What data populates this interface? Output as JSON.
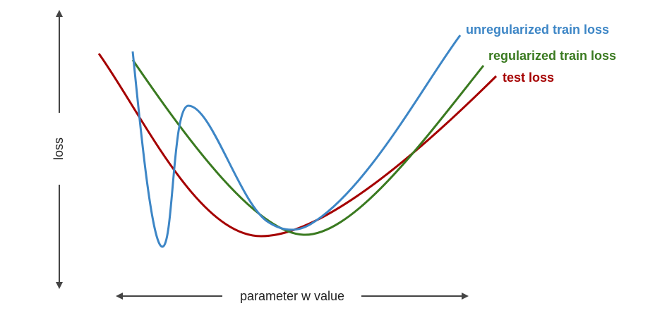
{
  "axes": {
    "y_label": "loss",
    "x_label": "parameter w value"
  },
  "curves": [
    {
      "label": "unregularized train loss"
    },
    {
      "label": "regularized train loss"
    },
    {
      "label": "test loss"
    }
  ]
}
